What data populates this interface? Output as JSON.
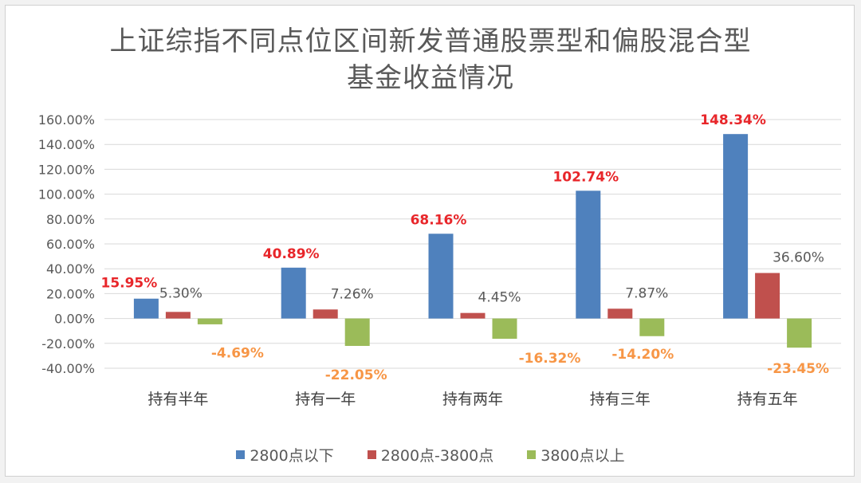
{
  "chart_data": {
    "type": "bar",
    "title_lines": [
      "上证综指不同点位区间新发普通股票型和偏股混合型",
      "基金收益情况"
    ],
    "categories": [
      "持有半年",
      "持有一年",
      "持有两年",
      "持有三年",
      "持有五年"
    ],
    "series": [
      {
        "name": "2800点以下",
        "color": "#4f81bd",
        "label_color": "#e8262a",
        "values": [
          15.95,
          40.89,
          68.16,
          102.74,
          148.34
        ],
        "labels": [
          "15.95%",
          "40.89%",
          "68.16%",
          "102.74%",
          "148.34%"
        ]
      },
      {
        "name": "2800点-3800点",
        "color": "#c0504d",
        "label_color": "#595959",
        "values": [
          5.3,
          7.26,
          4.45,
          7.87,
          36.6
        ],
        "labels": [
          "5.30%",
          "7.26%",
          "4.45%",
          "7.87%",
          "36.60%"
        ]
      },
      {
        "name": "3800点以上",
        "color": "#9bbb59",
        "label_color": "#f79646",
        "values": [
          -4.69,
          -22.05,
          -16.32,
          -14.2,
          -23.45
        ],
        "labels": [
          "-4.69%",
          "-22.05%",
          "-16.32%",
          "-14.20%",
          "-23.45%"
        ]
      }
    ],
    "yticks": [
      "160.00%",
      "140.00%",
      "120.00%",
      "100.00%",
      "80.00%",
      "60.00%",
      "40.00%",
      "20.00%",
      "0.00%",
      "-20.00%",
      "-40.00%"
    ],
    "ylim": [
      -40,
      160
    ],
    "grid": true,
    "legend": "bottom"
  }
}
